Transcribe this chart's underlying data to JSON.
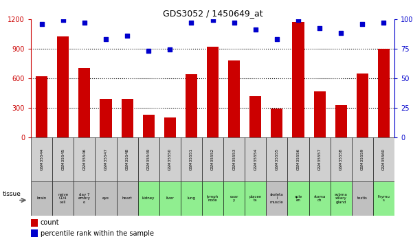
{
  "title": "GDS3052 / 1450649_at",
  "gsm_labels": [
    "GSM35544",
    "GSM35545",
    "GSM35546",
    "GSM35547",
    "GSM35548",
    "GSM35549",
    "GSM35550",
    "GSM35551",
    "GSM35552",
    "GSM35553",
    "GSM35554",
    "GSM35555",
    "GSM35556",
    "GSM35557",
    "GSM35558",
    "GSM35559",
    "GSM35560"
  ],
  "tissue_labels": [
    "brain",
    "naive\nCD4\ncell",
    "day 7\nembry\no",
    "eye",
    "heart",
    "kidney",
    "liver",
    "lung",
    "lymph\nnode",
    "ovar\ny",
    "placen\nta",
    "skeleta\nl\nmuscle",
    "sple\nen",
    "stoma\nch",
    "subma\nxillary\ngland",
    "testis",
    "thymu\ns"
  ],
  "tissue_colors": [
    "#c0c0c0",
    "#c0c0c0",
    "#c0c0c0",
    "#c0c0c0",
    "#c0c0c0",
    "#90ee90",
    "#90ee90",
    "#90ee90",
    "#90ee90",
    "#90ee90",
    "#90ee90",
    "#c0c0c0",
    "#90ee90",
    "#90ee90",
    "#90ee90",
    "#c0c0c0",
    "#90ee90"
  ],
  "counts": [
    620,
    1020,
    700,
    390,
    390,
    230,
    200,
    640,
    920,
    780,
    420,
    290,
    1170,
    470,
    330,
    650,
    900
  ],
  "percentiles": [
    96,
    99,
    97,
    83,
    86,
    73,
    74,
    97,
    99,
    97,
    91,
    83,
    99,
    92,
    88,
    96,
    97
  ],
  "bar_color": "#cc0000",
  "dot_color": "#0000cc",
  "ylim_left": [
    0,
    1200
  ],
  "ylim_right": [
    0,
    100
  ],
  "yticks_left": [
    0,
    300,
    600,
    900,
    1200
  ],
  "yticks_right": [
    0,
    25,
    50,
    75,
    100
  ],
  "yticklabels_right": [
    "0",
    "25",
    "50",
    "75",
    "100%"
  ],
  "grid_dotted_at": [
    300,
    600,
    900
  ],
  "bar_color_gsm_bg": "#d0d0d0",
  "background_color": "#ffffff"
}
